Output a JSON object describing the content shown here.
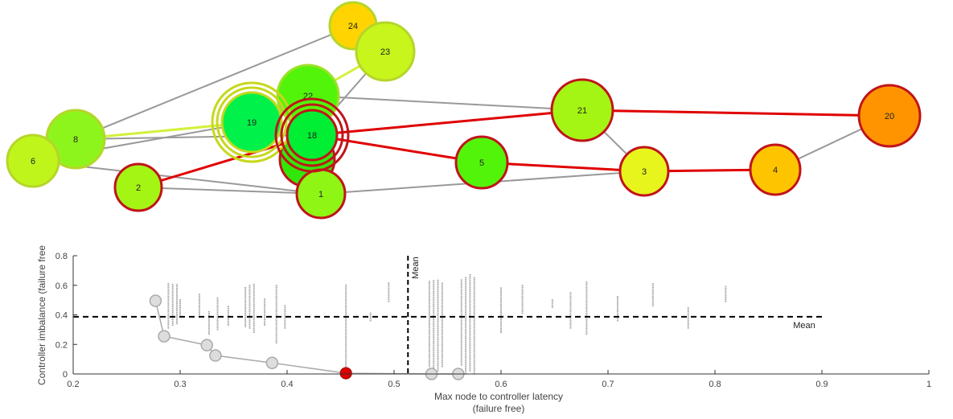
{
  "chart_data": [
    {
      "type": "network",
      "colors": {
        "path_edge": "#e00000",
        "edge": "#999999",
        "secondary_edge": "#d4f03a",
        "node_border_selected": "#c0141a",
        "node_border": "#b5d62a"
      },
      "nodes": [
        {
          "id": "24",
          "fill": "#ffd400",
          "border": "#b5d62a"
        },
        {
          "id": "23",
          "fill": "#c8f51c",
          "border": "#b5d62a"
        },
        {
          "id": "22",
          "fill": "#52f50a",
          "border": "#9ee02a"
        },
        {
          "id": "19",
          "fill": "#00f24a",
          "border": "#c6d81c"
        },
        {
          "id": "18",
          "fill": "#00ee33",
          "border": "#c0141a"
        },
        {
          "id": "8",
          "fill": "#8ef51c",
          "border": "#b5d62a"
        },
        {
          "id": "6",
          "fill": "#c0f51c",
          "border": "#b5d62a"
        },
        {
          "id": "2",
          "fill": "#a4f514",
          "border": "#c0141a"
        },
        {
          "id": "1",
          "fill": "#8ef514",
          "border": "#c0141a"
        },
        {
          "id": "5",
          "fill": "#52f50a",
          "border": "#c0141a"
        },
        {
          "id": "21",
          "fill": "#a4f514",
          "border": "#c0141a"
        },
        {
          "id": "3",
          "fill": "#e8f51c",
          "border": "#c0141a"
        },
        {
          "id": "4",
          "fill": "#ffc400",
          "border": "#c0141a"
        },
        {
          "id": "20",
          "fill": "#ff9400",
          "border": "#c0141a"
        }
      ],
      "edges": [
        {
          "from": "8",
          "to": "24",
          "kind": "edge"
        },
        {
          "from": "22",
          "to": "23",
          "kind": "secondary"
        },
        {
          "from": "18",
          "to": "23",
          "kind": "edge"
        },
        {
          "from": "22",
          "to": "21",
          "kind": "edge"
        },
        {
          "from": "8",
          "to": "19",
          "kind": "secondary"
        },
        {
          "from": "8",
          "to": "18",
          "kind": "edge"
        },
        {
          "from": "6",
          "to": "19",
          "kind": "edge"
        },
        {
          "from": "6",
          "to": "8",
          "kind": "edge"
        },
        {
          "from": "6",
          "to": "1",
          "kind": "edge"
        },
        {
          "from": "2",
          "to": "1",
          "kind": "edge"
        },
        {
          "from": "1",
          "to": "3",
          "kind": "edge"
        },
        {
          "from": "1",
          "to": "18",
          "kind": "edge"
        },
        {
          "from": "21",
          "to": "3",
          "kind": "edge"
        },
        {
          "from": "4",
          "to": "20",
          "kind": "edge"
        },
        {
          "from": "2",
          "to": "18",
          "kind": "path"
        },
        {
          "from": "18",
          "to": "21",
          "kind": "path"
        },
        {
          "from": "21",
          "to": "20",
          "kind": "path"
        },
        {
          "from": "18",
          "to": "5",
          "kind": "path"
        },
        {
          "from": "5",
          "to": "3",
          "kind": "path"
        },
        {
          "from": "3",
          "to": "4",
          "kind": "path"
        }
      ]
    },
    {
      "type": "scatter",
      "xlabel": "Max node to controller latency",
      "xlabel2": "(failure free)",
      "ylabel": "Controller imbalance (failure free",
      "xlim": [
        0.2,
        1.0
      ],
      "ylim": [
        0,
        0.8
      ],
      "xticks": [
        "0.2",
        "0.3",
        "0.4",
        "0.5",
        "0.6",
        "0.7",
        "0.8",
        "0.9",
        "1"
      ],
      "yticks": [
        "0",
        "0.2",
        "0.4",
        "0.6",
        "0.8"
      ],
      "mean_x": 0.513,
      "mean_y": 0.387,
      "mean_label": "Mean",
      "pareto_front": [
        [
          0.277,
          0.495
        ],
        [
          0.285,
          0.255
        ],
        [
          0.325,
          0.195
        ],
        [
          0.333,
          0.125
        ],
        [
          0.386,
          0.075
        ],
        [
          0.455,
          0.005
        ],
        [
          0.535,
          0.0
        ],
        [
          0.56,
          0.0
        ]
      ],
      "selected_point": [
        0.455,
        0.005
      ],
      "colors": {
        "front": "#aaaaaa",
        "selected": "#dd0000",
        "scatter": "#aaaaaa",
        "mean_line": "#000000"
      },
      "scatter_columns": [
        {
          "x": 0.289,
          "lo": 0.31,
          "hi": 0.61
        },
        {
          "x": 0.293,
          "lo": 0.33,
          "hi": 0.61
        },
        {
          "x": 0.297,
          "lo": 0.34,
          "hi": 0.61
        },
        {
          "x": 0.3,
          "lo": 0.4,
          "hi": 0.51
        },
        {
          "x": 0.318,
          "lo": 0.4,
          "hi": 0.54
        },
        {
          "x": 0.327,
          "lo": 0.27,
          "hi": 0.43
        },
        {
          "x": 0.335,
          "lo": 0.3,
          "hi": 0.52
        },
        {
          "x": 0.345,
          "lo": 0.33,
          "hi": 0.46
        },
        {
          "x": 0.361,
          "lo": 0.32,
          "hi": 0.59
        },
        {
          "x": 0.365,
          "lo": 0.31,
          "hi": 0.6
        },
        {
          "x": 0.369,
          "lo": 0.28,
          "hi": 0.61
        },
        {
          "x": 0.379,
          "lo": 0.33,
          "hi": 0.51
        },
        {
          "x": 0.39,
          "lo": 0.21,
          "hi": 0.6
        },
        {
          "x": 0.398,
          "lo": 0.31,
          "hi": 0.46
        },
        {
          "x": 0.455,
          "lo": 0.0,
          "hi": 0.6
        },
        {
          "x": 0.478,
          "lo": 0.36,
          "hi": 0.41
        },
        {
          "x": 0.495,
          "lo": 0.49,
          "hi": 0.62
        },
        {
          "x": 0.533,
          "lo": 0.05,
          "hi": 0.63
        },
        {
          "x": 0.537,
          "lo": 0.03,
          "hi": 0.64
        },
        {
          "x": 0.541,
          "lo": 0.02,
          "hi": 0.64
        },
        {
          "x": 0.545,
          "lo": 0.05,
          "hi": 0.62
        },
        {
          "x": 0.563,
          "lo": 0.06,
          "hi": 0.64
        },
        {
          "x": 0.567,
          "lo": 0.0,
          "hi": 0.66
        },
        {
          "x": 0.571,
          "lo": 0.02,
          "hi": 0.67
        },
        {
          "x": 0.575,
          "lo": 0.0,
          "hi": 0.66
        },
        {
          "x": 0.6,
          "lo": 0.28,
          "hi": 0.58
        },
        {
          "x": 0.62,
          "lo": 0.41,
          "hi": 0.6
        },
        {
          "x": 0.648,
          "lo": 0.45,
          "hi": 0.51
        },
        {
          "x": 0.665,
          "lo": 0.31,
          "hi": 0.55
        },
        {
          "x": 0.68,
          "lo": 0.27,
          "hi": 0.62
        },
        {
          "x": 0.709,
          "lo": 0.36,
          "hi": 0.53
        },
        {
          "x": 0.742,
          "lo": 0.46,
          "hi": 0.62
        },
        {
          "x": 0.775,
          "lo": 0.31,
          "hi": 0.45
        },
        {
          "x": 0.81,
          "lo": 0.49,
          "hi": 0.6
        }
      ]
    }
  ]
}
